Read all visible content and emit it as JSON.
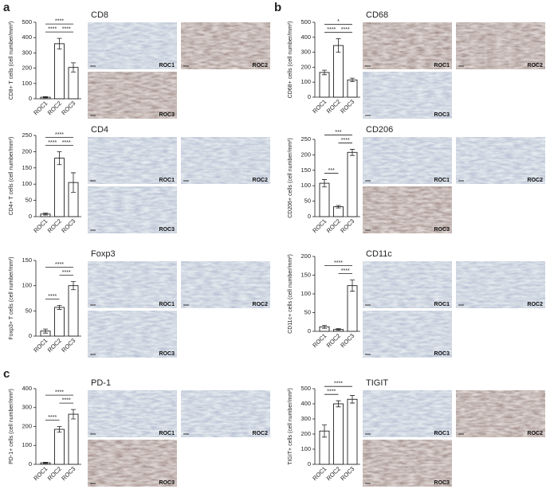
{
  "panel_letters": [
    "a",
    "b",
    "c"
  ],
  "chart_data": [
    {
      "type": "bar",
      "title": "CD8",
      "ylabel": "CD8+ T cells (cell number/mm²)",
      "categories": [
        "ROC1",
        "ROC2",
        "ROC3"
      ],
      "values": [
        10,
        360,
        205
      ],
      "errors": [
        4,
        35,
        30
      ],
      "color": "#ffffff",
      "ylim": [
        0,
        500
      ],
      "yticks": [
        0,
        100,
        200,
        300,
        400,
        500
      ],
      "comparisons": [
        {
          "groups": [
            "ROC1",
            "ROC3"
          ],
          "label": "****"
        },
        {
          "groups": [
            "ROC1",
            "ROC2"
          ],
          "label": "****"
        },
        {
          "groups": [
            "ROC2",
            "ROC3"
          ],
          "label": "****"
        }
      ],
      "image_labels": [
        "ROC1",
        "ROC2",
        "ROC3"
      ]
    },
    {
      "type": "bar",
      "title": "CD4",
      "ylabel": "CD4+ T cells (cell number/mm²)",
      "categories": [
        "ROC1",
        "ROC2",
        "ROC3"
      ],
      "values": [
        8,
        180,
        105
      ],
      "errors": [
        3,
        20,
        30
      ],
      "color": "#ffffff",
      "ylim": [
        0,
        250
      ],
      "yticks": [
        0,
        50,
        100,
        150,
        200,
        250
      ],
      "comparisons": [
        {
          "groups": [
            "ROC1",
            "ROC3"
          ],
          "label": "****"
        },
        {
          "groups": [
            "ROC1",
            "ROC2"
          ],
          "label": "****"
        },
        {
          "groups": [
            "ROC2",
            "ROC3"
          ],
          "label": "****"
        }
      ],
      "image_labels": [
        "ROC1",
        "ROC2",
        "ROC3"
      ]
    },
    {
      "type": "bar",
      "title": "Foxp3",
      "ylabel": "Foxp3+ T cells (cell number/mm²)",
      "categories": [
        "ROC1",
        "ROC2",
        "ROC3"
      ],
      "values": [
        10,
        57,
        100
      ],
      "errors": [
        4,
        4,
        8
      ],
      "color": "#ffffff",
      "ylim": [
        0,
        150
      ],
      "yticks": [
        0,
        50,
        100,
        150
      ],
      "comparisons": [
        {
          "groups": [
            "ROC1",
            "ROC3"
          ],
          "label": "****"
        },
        {
          "groups": [
            "ROC1",
            "ROC2"
          ],
          "label": "****"
        },
        {
          "groups": [
            "ROC2",
            "ROC3"
          ],
          "label": "****"
        }
      ],
      "image_labels": [
        "ROC1",
        "ROC2",
        "ROC3"
      ]
    },
    {
      "type": "bar",
      "title": "CD68",
      "ylabel": "CD68+ cells (cell number/mm²)",
      "categories": [
        "ROC1",
        "ROC2",
        "ROC3"
      ],
      "values": [
        165,
        345,
        115
      ],
      "errors": [
        15,
        45,
        12
      ],
      "color": "#ffffff",
      "ylim": [
        0,
        500
      ],
      "yticks": [
        0,
        100,
        200,
        300,
        400,
        500
      ],
      "comparisons": [
        {
          "groups": [
            "ROC1",
            "ROC3"
          ],
          "label": "*"
        },
        {
          "groups": [
            "ROC1",
            "ROC2"
          ],
          "label": "****"
        },
        {
          "groups": [
            "ROC2",
            "ROC3"
          ],
          "label": "****"
        }
      ],
      "image_labels": [
        "ROC1",
        "ROC2",
        "ROC3"
      ]
    },
    {
      "type": "bar",
      "title": "CD206",
      "ylabel": "CD206+ cells (cell number/mm²)",
      "categories": [
        "ROC1",
        "ROC2",
        "ROC3"
      ],
      "values": [
        108,
        32,
        208
      ],
      "errors": [
        12,
        4,
        10
      ],
      "color": "#ffffff",
      "ylim": [
        0,
        250
      ],
      "yticks": [
        0,
        50,
        100,
        150,
        200,
        250
      ],
      "comparisons": [
        {
          "groups": [
            "ROC1",
            "ROC3"
          ],
          "label": "***"
        },
        {
          "groups": [
            "ROC1",
            "ROC2"
          ],
          "label": "***"
        },
        {
          "groups": [
            "ROC2",
            "ROC3"
          ],
          "label": "****"
        }
      ],
      "image_labels": [
        "ROC1",
        "ROC2",
        "ROC3"
      ]
    },
    {
      "type": "bar",
      "title": "CD11c",
      "ylabel": "CD11c+ cells (cell number/mm²)",
      "categories": [
        "ROC1",
        "ROC2",
        "ROC3"
      ],
      "values": [
        12,
        5,
        122
      ],
      "errors": [
        4,
        2,
        15
      ],
      "color": "#ffffff",
      "ylim": [
        0,
        200
      ],
      "yticks": [
        0,
        50,
        100,
        150,
        200
      ],
      "comparisons": [
        {
          "groups": [
            "ROC1",
            "ROC3"
          ],
          "label": "****"
        },
        {
          "groups": [
            "ROC2",
            "ROC3"
          ],
          "label": "****"
        }
      ],
      "image_labels": [
        "ROC1",
        "ROC2",
        "ROC3"
      ]
    },
    {
      "type": "bar",
      "title": "PD-1",
      "ylabel": "PD-1+ cells (cell number/mm²)",
      "categories": [
        "ROC1",
        "ROC2",
        "ROC3"
      ],
      "values": [
        8,
        185,
        265
      ],
      "errors": [
        3,
        15,
        25
      ],
      "color": "#ffffff",
      "ylim": [
        0,
        400
      ],
      "yticks": [
        0,
        100,
        200,
        300,
        400
      ],
      "comparisons": [
        {
          "groups": [
            "ROC1",
            "ROC3"
          ],
          "label": "****"
        },
        {
          "groups": [
            "ROC1",
            "ROC2"
          ],
          "label": "****"
        },
        {
          "groups": [
            "ROC2",
            "ROC3"
          ],
          "label": "****"
        }
      ],
      "image_labels": [
        "ROC1",
        "ROC2",
        "ROC3"
      ]
    },
    {
      "type": "bar",
      "title": "TIGIT",
      "ylabel": "TIGIT+ cells (cell number/mm²)",
      "categories": [
        "ROC1",
        "ROC2",
        "ROC3"
      ],
      "values": [
        220,
        400,
        430
      ],
      "errors": [
        40,
        20,
        25
      ],
      "color": "#ffffff",
      "ylim": [
        0,
        500
      ],
      "yticks": [
        0,
        100,
        200,
        300,
        400,
        500
      ],
      "comparisons": [
        {
          "groups": [
            "ROC1",
            "ROC3"
          ],
          "label": "****"
        },
        {
          "groups": [
            "ROC1",
            "ROC2"
          ],
          "label": "****"
        }
      ],
      "image_labels": [
        "ROC1",
        "ROC2",
        "ROC3"
      ]
    }
  ]
}
